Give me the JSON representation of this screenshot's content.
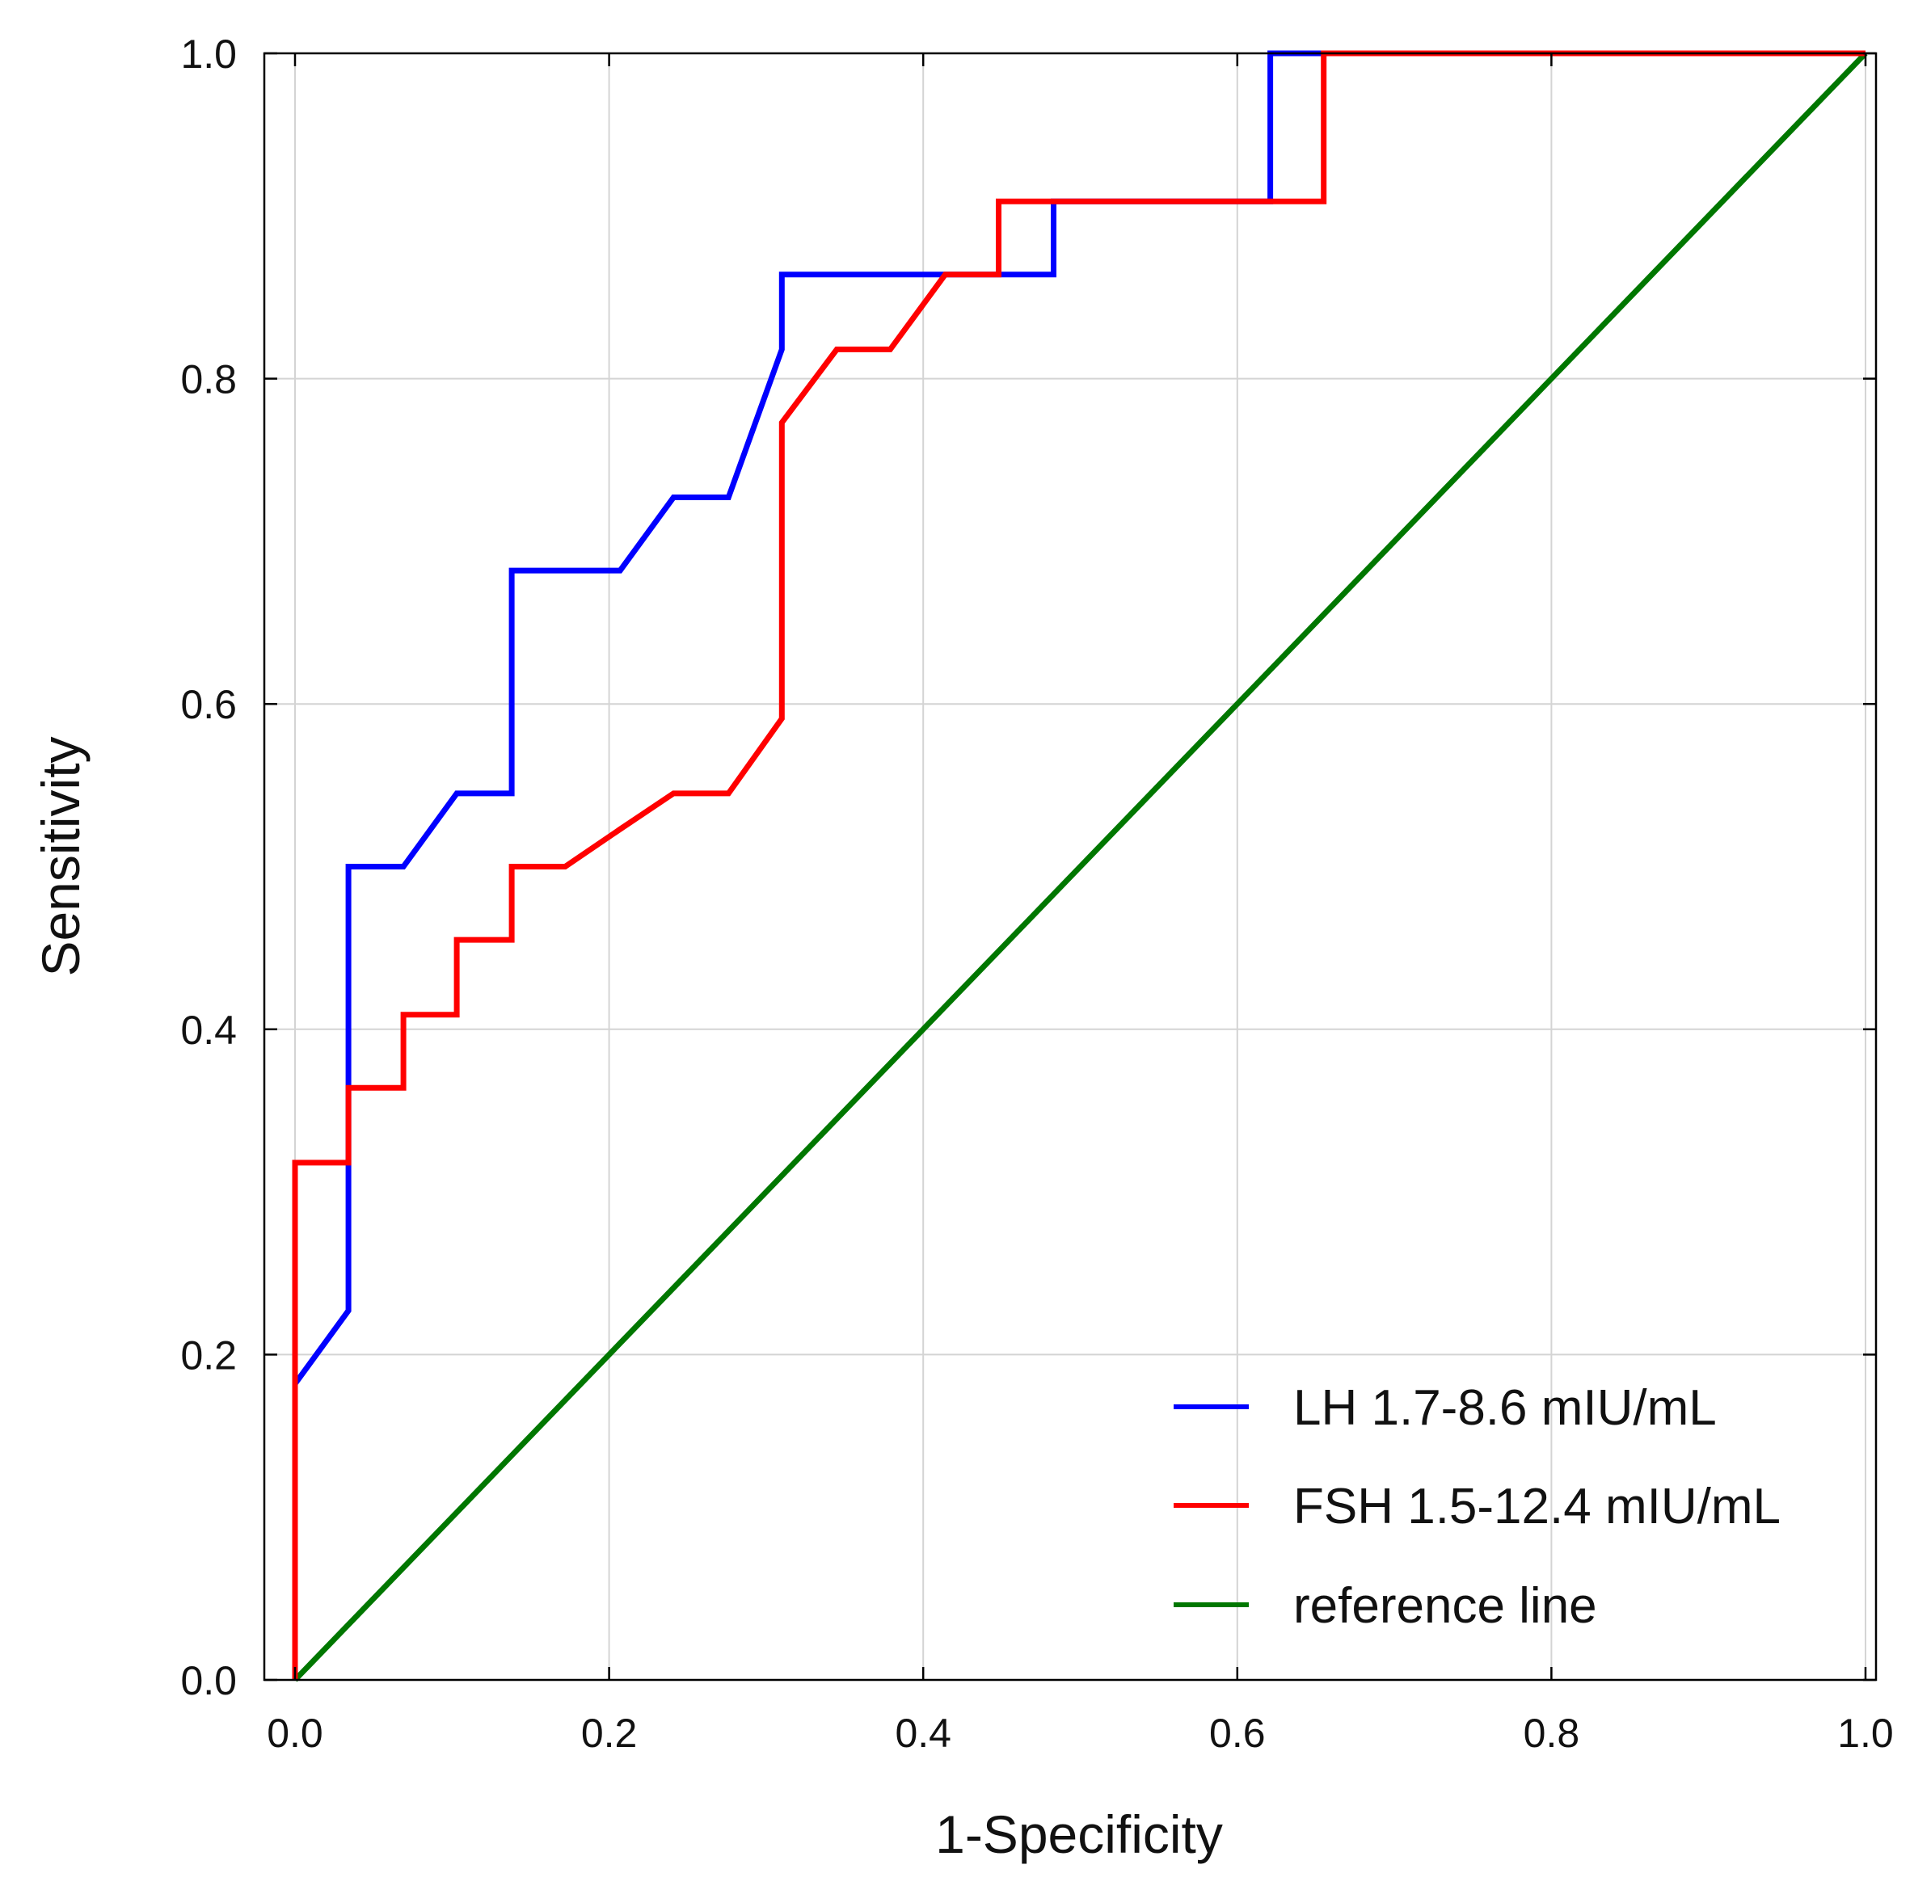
{
  "chart_data": {
    "type": "line",
    "title": "",
    "xlabel": "1-Specificity",
    "ylabel": "Sensitivity",
    "xlim": [
      0,
      1
    ],
    "ylim": [
      0,
      1
    ],
    "grid": true,
    "legend_position": "bottom-right",
    "xticks": [
      "0.0",
      "0.2",
      "0.4",
      "0.6",
      "0.8",
      "1.0"
    ],
    "yticks": [
      "0.0",
      "0.2",
      "0.4",
      "0.6",
      "0.8",
      "1.0"
    ],
    "series": [
      {
        "name": "LH 1.7-8.6 mIU/mL",
        "color": "#0000ff",
        "x": [
          0.0,
          0.0,
          0.034,
          0.034,
          0.069,
          0.103,
          0.138,
          0.138,
          0.172,
          0.207,
          0.241,
          0.276,
          0.31,
          0.31,
          0.345,
          0.379,
          0.414,
          0.448,
          0.483,
          0.483,
          0.517,
          0.552,
          0.586,
          0.621,
          0.621,
          0.655,
          0.69,
          1.0
        ],
        "y": [
          0.0,
          0.182,
          0.227,
          0.5,
          0.5,
          0.545,
          0.545,
          0.682,
          0.682,
          0.682,
          0.727,
          0.727,
          0.818,
          0.864,
          0.864,
          0.864,
          0.864,
          0.864,
          0.864,
          0.909,
          0.909,
          0.909,
          0.909,
          0.909,
          1.0,
          1.0,
          1.0,
          1.0
        ]
      },
      {
        "name": "FSH 1.5-12.4 mIU/mL",
        "color": "#ff0000",
        "x": [
          0.0,
          0.0,
          0.034,
          0.034,
          0.069,
          0.069,
          0.103,
          0.103,
          0.138,
          0.138,
          0.172,
          0.207,
          0.241,
          0.276,
          0.31,
          0.31,
          0.345,
          0.379,
          0.414,
          0.448,
          0.448,
          0.483,
          0.517,
          0.552,
          0.586,
          0.621,
          0.655,
          0.655,
          1.0
        ],
        "y": [
          0.0,
          0.318,
          0.318,
          0.364,
          0.364,
          0.409,
          0.409,
          0.455,
          0.455,
          0.5,
          0.5,
          0.523,
          0.545,
          0.545,
          0.591,
          0.773,
          0.818,
          0.818,
          0.864,
          0.864,
          0.909,
          0.909,
          0.909,
          0.909,
          0.909,
          0.909,
          0.909,
          1.0,
          1.0
        ]
      },
      {
        "name": "reference line",
        "color": "#007700",
        "x": [
          0.0,
          1.0
        ],
        "y": [
          0.0,
          1.0
        ]
      }
    ]
  }
}
